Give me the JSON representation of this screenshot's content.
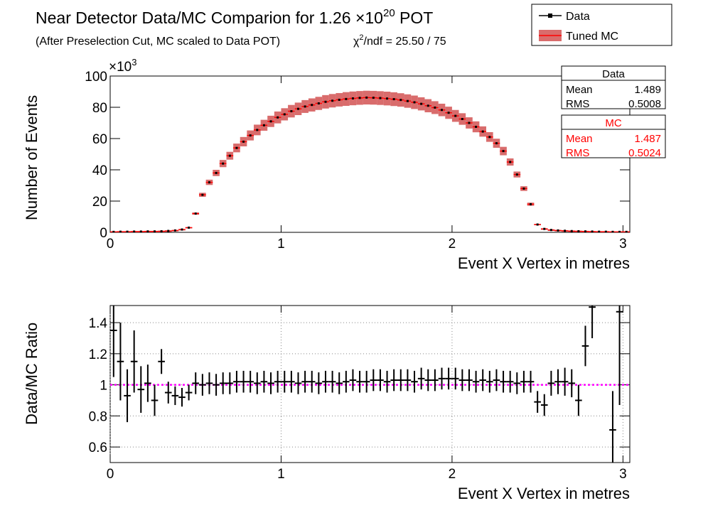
{
  "chart_data": [
    {
      "type": "data_mc",
      "title": {
        "text": "Near Detector Data/MC Comparion for 1.26 ×10",
        "superscript": "20",
        "suffix": " POT"
      },
      "subtitle": "(After Preselection Cut, MC scaled to Data POT)",
      "chi2": {
        "symbol": "χ",
        "superscript": "2",
        "text": "/ndf = 25.50 / 75"
      },
      "x_label": "Event X Vertex in metres",
      "y_label": "Number of Events",
      "y_multiplier": {
        "base": "×10",
        "exponent": "3"
      },
      "x": [
        0.02,
        0.06,
        0.1,
        0.14,
        0.18,
        0.22,
        0.26,
        0.3,
        0.34,
        0.38,
        0.42,
        0.46,
        0.5,
        0.54,
        0.58,
        0.62,
        0.66,
        0.7,
        0.74,
        0.78,
        0.82,
        0.86,
        0.9,
        0.94,
        0.98,
        1.02,
        1.06,
        1.1,
        1.14,
        1.18,
        1.22,
        1.26,
        1.3,
        1.34,
        1.38,
        1.42,
        1.46,
        1.5,
        1.54,
        1.58,
        1.62,
        1.66,
        1.7,
        1.74,
        1.78,
        1.82,
        1.86,
        1.9,
        1.94,
        1.98,
        2.02,
        2.06,
        2.1,
        2.14,
        2.18,
        2.22,
        2.26,
        2.3,
        2.34,
        2.38,
        2.42,
        2.46,
        2.5,
        2.54,
        2.58,
        2.62,
        2.66,
        2.7,
        2.74,
        2.78,
        2.82,
        2.86,
        2.9,
        2.94,
        2.98,
        3.02
      ],
      "series": [
        {
          "name": "Data",
          "color": "#000000",
          "values": [
            0.3,
            0.4,
            0.4,
            0.5,
            0.5,
            0.6,
            0.6,
            0.7,
            0.9,
            1.2,
            1.8,
            3.0,
            12,
            24,
            32,
            38,
            44,
            49,
            54,
            58,
            62,
            65.5,
            68.5,
            71,
            73.5,
            75.5,
            77.5,
            79,
            80.5,
            81.5,
            82.5,
            83.5,
            84.2,
            84.8,
            85.3,
            85.7,
            86,
            86.2,
            86.1,
            85.9,
            85.6,
            85.2,
            84.7,
            84,
            83.2,
            82.2,
            81,
            79.8,
            78.3,
            76.5,
            74.5,
            72.5,
            70,
            67.5,
            64.5,
            61,
            57,
            52,
            45,
            37,
            28,
            18,
            5,
            2.2,
            1.5,
            1.2,
            1.0,
            0.8,
            0.7,
            0.6,
            0.5,
            0.4,
            0.4,
            0.3,
            0.3,
            0.3
          ]
        },
        {
          "name": "Tuned MC",
          "color": "#cc3b3b",
          "values": [
            0.3,
            0.4,
            0.4,
            0.5,
            0.5,
            0.6,
            0.6,
            0.7,
            0.9,
            1.2,
            1.8,
            3.0,
            12,
            24,
            32,
            38,
            44,
            49,
            54,
            58,
            62,
            65.5,
            68.5,
            71,
            73.5,
            75.5,
            77.5,
            79,
            80.5,
            81.5,
            82.5,
            83.5,
            84.2,
            84.8,
            85.3,
            85.7,
            86,
            86.2,
            86.1,
            85.9,
            85.6,
            85.2,
            84.7,
            84,
            83.2,
            82.2,
            81,
            79.8,
            78.3,
            76.5,
            74.5,
            72.5,
            70,
            67.5,
            64.5,
            61,
            57,
            52,
            45,
            37,
            28,
            18,
            5,
            2.2,
            1.5,
            1.2,
            1.0,
            0.8,
            0.7,
            0.6,
            0.5,
            0.4,
            0.4,
            0.3,
            0.3,
            0.3
          ],
          "errors": [
            0.02,
            0.02,
            0.02,
            0.03,
            0.03,
            0.03,
            0.03,
            0.04,
            0.05,
            0.06,
            0.1,
            0.2,
            0.7,
            1.3,
            1.7,
            2.0,
            2.3,
            2.5,
            2.8,
            3.0,
            3.2,
            3.4,
            3.5,
            3.6,
            3.8,
            3.9,
            4.0,
            4.0,
            4.1,
            4.2,
            4.2,
            4.3,
            4.3,
            4.3,
            4.4,
            4.4,
            4.4,
            4.4,
            4.4,
            4.4,
            4.4,
            4.4,
            4.3,
            4.3,
            4.3,
            4.2,
            4.2,
            4.1,
            4.0,
            3.9,
            3.8,
            3.7,
            3.6,
            3.5,
            3.3,
            3.1,
            2.9,
            2.7,
            2.3,
            1.9,
            1.5,
            1.0,
            0.3,
            0.12,
            0.08,
            0.06,
            0.05,
            0.04,
            0.04,
            0.03,
            0.03,
            0.02,
            0.02,
            0.02,
            0.02,
            0.02
          ]
        }
      ],
      "xlim": [
        0,
        3.04
      ],
      "xticks": [
        0,
        1,
        2,
        3
      ],
      "ylim": [
        0,
        100
      ],
      "yticks": [
        0,
        20,
        40,
        60,
        80,
        100
      ],
      "legend": "top-right",
      "stats": [
        {
          "title": "Data",
          "color": "#000000",
          "rows": [
            {
              "name": "Mean",
              "value": 1.489
            },
            {
              "name": "RMS",
              "value": 0.5008
            }
          ]
        },
        {
          "title": "MC",
          "color": "#ff0000",
          "rows": [
            {
              "name": "Mean",
              "value": 1.487
            },
            {
              "name": "RMS",
              "value": 0.5024
            }
          ]
        }
      ]
    },
    {
      "type": "ratio",
      "x_label": "Event X Vertex in metres",
      "y_label": "Data/MC Ratio",
      "x": [
        0.02,
        0.06,
        0.1,
        0.14,
        0.18,
        0.22,
        0.26,
        0.3,
        0.34,
        0.38,
        0.42,
        0.46,
        0.5,
        0.54,
        0.58,
        0.62,
        0.66,
        0.7,
        0.74,
        0.78,
        0.82,
        0.86,
        0.9,
        0.94,
        0.98,
        1.02,
        1.06,
        1.1,
        1.14,
        1.18,
        1.22,
        1.26,
        1.3,
        1.34,
        1.38,
        1.42,
        1.46,
        1.5,
        1.54,
        1.58,
        1.62,
        1.66,
        1.7,
        1.74,
        1.78,
        1.82,
        1.86,
        1.9,
        1.94,
        1.98,
        2.02,
        2.06,
        2.1,
        2.14,
        2.18,
        2.22,
        2.26,
        2.3,
        2.34,
        2.38,
        2.42,
        2.46,
        2.5,
        2.54,
        2.58,
        2.62,
        2.66,
        2.7,
        2.74,
        2.78,
        2.82,
        2.86,
        2.9,
        2.94,
        2.98,
        3.02
      ],
      "color": "#000000",
      "values": [
        1.35,
        1.15,
        0.93,
        1.15,
        0.97,
        1.01,
        0.9,
        1.15,
        0.95,
        0.93,
        0.92,
        0.95,
        1.01,
        1.0,
        1.01,
        1.0,
        1.01,
        1.01,
        1.02,
        1.02,
        1.02,
        1.01,
        1.02,
        1.01,
        1.02,
        1.02,
        1.02,
        1.01,
        1.02,
        1.02,
        1.01,
        1.02,
        1.02,
        1.01,
        1.02,
        1.03,
        1.02,
        1.02,
        1.03,
        1.03,
        1.02,
        1.03,
        1.03,
        1.03,
        1.02,
        1.04,
        1.03,
        1.03,
        1.04,
        1.04,
        1.04,
        1.03,
        1.03,
        1.02,
        1.03,
        1.02,
        1.03,
        1.02,
        1.02,
        1.01,
        1.02,
        1.02,
        0.89,
        0.87,
        1.01,
        1.02,
        1.02,
        1.01,
        0.9,
        1.25,
        1.5,
        null,
        null,
        0.71,
        1.47,
        null
      ],
      "errors": [
        0.3,
        0.25,
        0.17,
        0.2,
        0.15,
        0.12,
        0.1,
        0.08,
        0.07,
        0.06,
        0.06,
        0.05,
        0.07,
        0.07,
        0.07,
        0.07,
        0.07,
        0.07,
        0.07,
        0.07,
        0.07,
        0.07,
        0.07,
        0.07,
        0.07,
        0.07,
        0.07,
        0.07,
        0.07,
        0.07,
        0.07,
        0.07,
        0.07,
        0.07,
        0.07,
        0.07,
        0.07,
        0.07,
        0.07,
        0.07,
        0.07,
        0.07,
        0.07,
        0.07,
        0.07,
        0.07,
        0.07,
        0.07,
        0.07,
        0.07,
        0.07,
        0.07,
        0.07,
        0.07,
        0.07,
        0.07,
        0.07,
        0.07,
        0.07,
        0.07,
        0.07,
        0.07,
        0.07,
        0.07,
        0.08,
        0.08,
        0.09,
        0.09,
        0.1,
        0.13,
        0.2,
        null,
        null,
        0.25,
        0.6,
        null
      ],
      "xlim": [
        0,
        3.04
      ],
      "xticks": [
        0,
        1,
        2,
        3
      ],
      "ylim": [
        0.5,
        1.51
      ],
      "yticks": [
        0.6,
        0.8,
        1,
        1.2,
        1.4
      ],
      "grid": true,
      "reference_line": {
        "value": 1,
        "color": "#ff00ff"
      }
    }
  ]
}
